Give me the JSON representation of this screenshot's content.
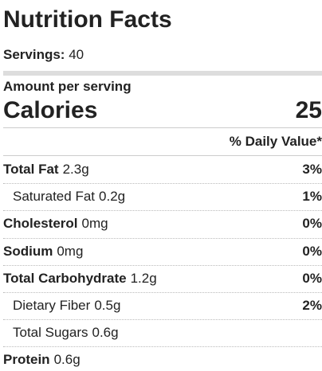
{
  "header": {
    "title": "Nutrition Facts",
    "servings_label": "Servings:",
    "servings": 40
  },
  "amount_per_serving": "Amount per serving",
  "calories": {
    "label": "Calories",
    "value": 25
  },
  "daily_value_header": "% Daily Value*",
  "nutrients": [
    {
      "name": "Total Fat",
      "amount": "2.3g",
      "dv": "3%",
      "sub": [
        {
          "name": "Saturated Fat",
          "amount": "0.2g",
          "dv": "1%"
        }
      ]
    },
    {
      "name": "Cholesterol",
      "amount": "0mg",
      "dv": "0%"
    },
    {
      "name": "Sodium",
      "amount": "0mg",
      "dv": "0%"
    },
    {
      "name": "Total Carbohydrate",
      "amount": "1.2g",
      "dv": "0%",
      "sub": [
        {
          "name": "Dietary Fiber",
          "amount": "0.5g",
          "dv": "2%"
        },
        {
          "name": "Total Sugars",
          "amount": "0.6g"
        }
      ]
    },
    {
      "name": "Protein",
      "amount": "0.6g"
    }
  ]
}
